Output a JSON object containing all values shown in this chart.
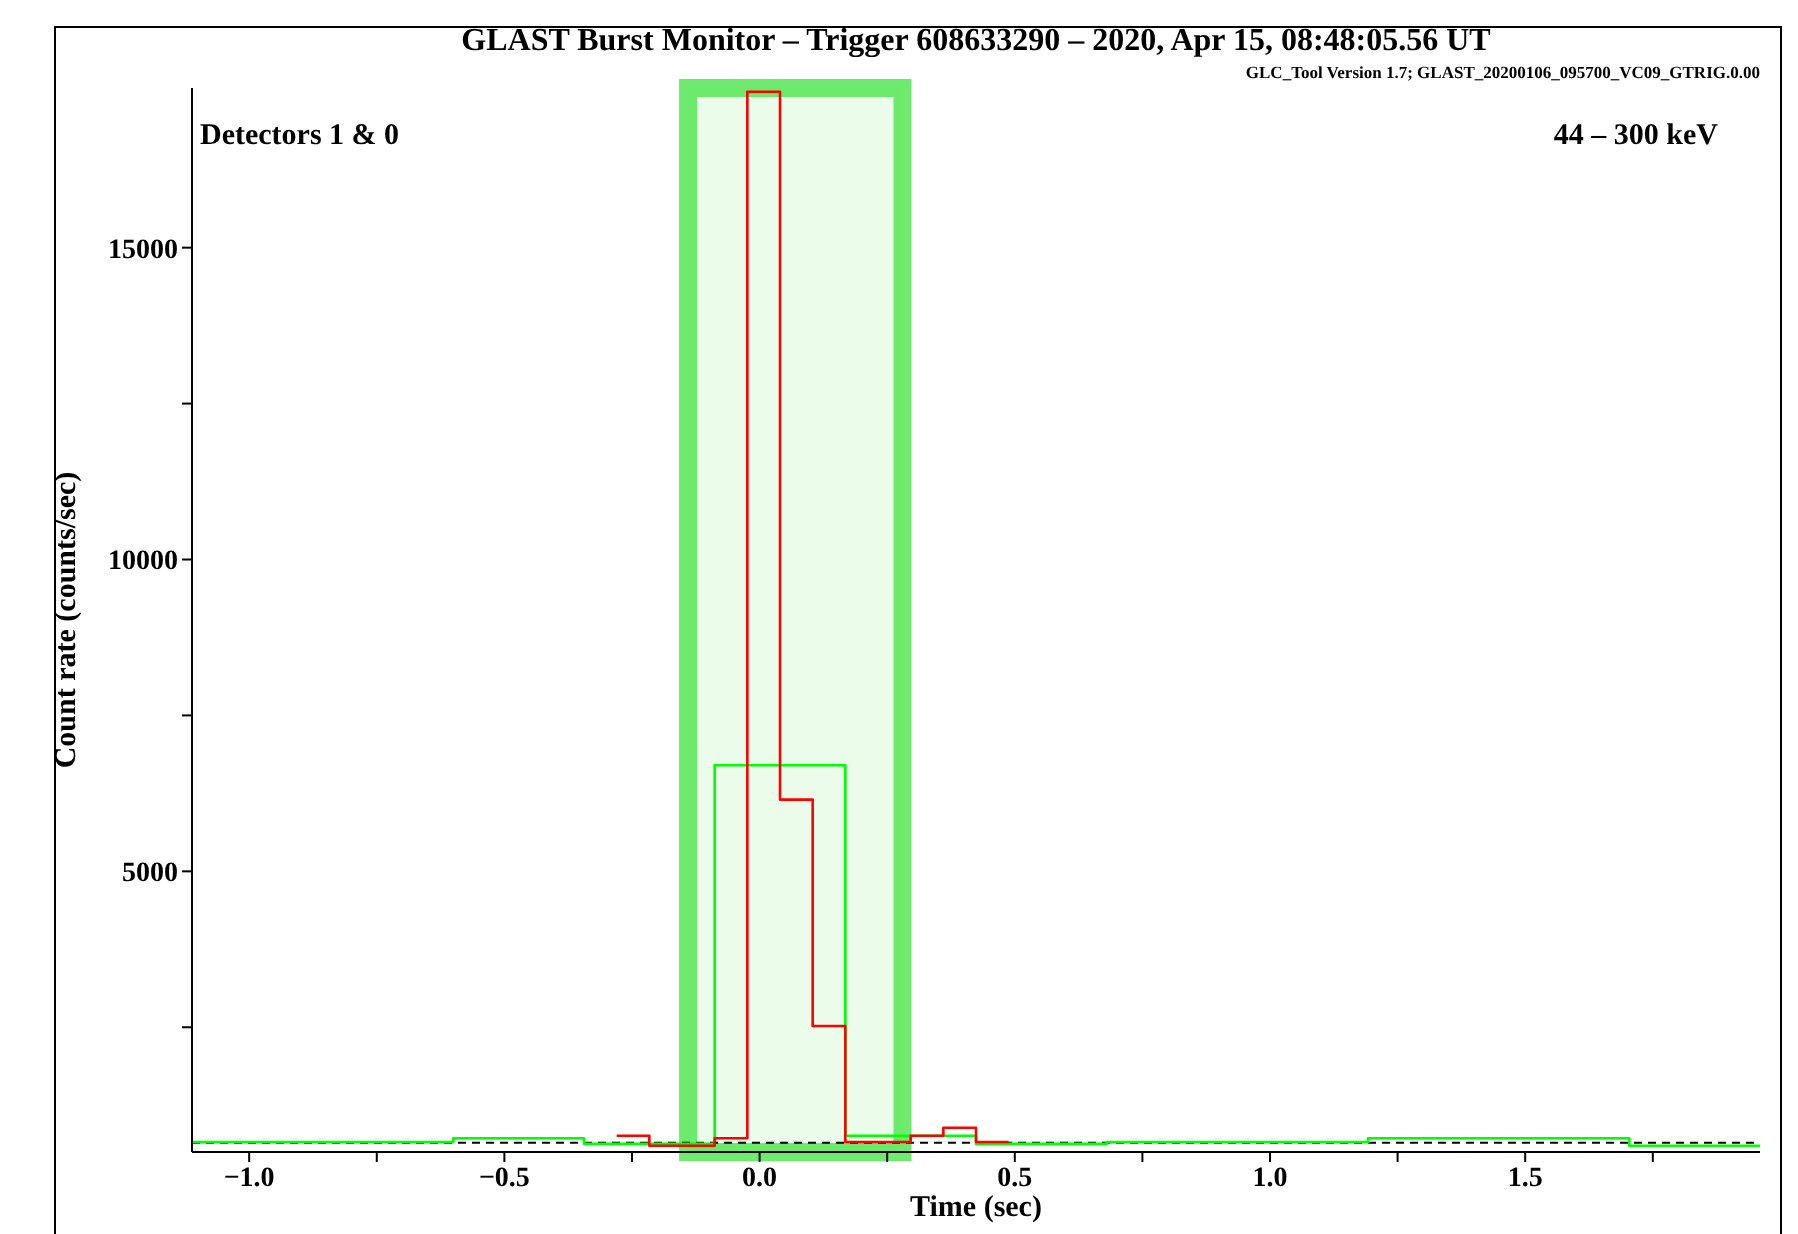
{
  "chart_data": {
    "type": "step",
    "title": "GLAST Burst Monitor – Trigger 608633290 – 2020, Apr 15, 08:48:05.56 UT",
    "subtitle": "GLC_Tool Version 1.7; GLAST_20200106_095700_VC09_GTRIG.0.00",
    "xlabel": "Time (sec)",
    "ylabel": "Count rate (counts/sec)",
    "annotations": [
      "Detectors 1 & 0",
      "44 – 300 keV"
    ],
    "series": [
      {
        "color": "#00ff00",
        "x": [
          -1.112,
          -0.856,
          -0.6,
          -0.344,
          -0.088,
          0.168,
          0.424,
          0.68,
          0.936,
          1.192,
          1.448,
          1.704,
          1.96
        ],
        "values": [
          660,
          660,
          720,
          630,
          6700,
          760,
          630,
          660,
          660,
          720,
          720,
          600,
          600
        ]
      },
      {
        "color": "#ff0000",
        "x": [
          -0.28,
          -0.216,
          -0.152,
          -0.088,
          -0.024,
          0.04,
          0.104,
          0.168,
          0.232,
          0.296,
          0.36,
          0.424,
          0.488
        ],
        "values": [
          760,
          600,
          600,
          720,
          17500,
          6150,
          2520,
          660,
          660,
          760,
          890,
          660,
          660
        ]
      }
    ],
    "bands": [
      {
        "axis": "x",
        "from": -0.14,
        "to": 0.28,
        "color": "#5ee85e"
      }
    ],
    "ref_lines": [
      {
        "axis": "y",
        "value": 650,
        "color": "#000000",
        "line_style": "dashed"
      }
    ],
    "xlim": [
      -1.112,
      1.96
    ],
    "xticks": [
      {
        "value": -1,
        "label": "−1.0"
      },
      {
        "value": -0.75,
        "label": null
      },
      {
        "value": -0.5,
        "label": "−0.5"
      },
      {
        "value": -0.25,
        "label": null
      },
      {
        "value": 0,
        "label": "0.0"
      },
      {
        "value": 0.25,
        "label": null
      },
      {
        "value": 0.5,
        "label": "0.5"
      },
      {
        "value": 0.75,
        "label": null
      },
      {
        "value": 1,
        "label": "1.0"
      },
      {
        "value": 1.25,
        "label": null
      },
      {
        "value": 1.5,
        "label": "1.5"
      },
      {
        "value": 1.75,
        "label": null
      }
    ],
    "ylim": [
      500,
      17560
    ],
    "yticks": [
      {
        "value": 2500,
        "label": null
      },
      5000,
      {
        "value": 7500,
        "label": null
      },
      10000,
      {
        "value": 12500,
        "label": null
      },
      15000
    ],
    "grid": false
  }
}
